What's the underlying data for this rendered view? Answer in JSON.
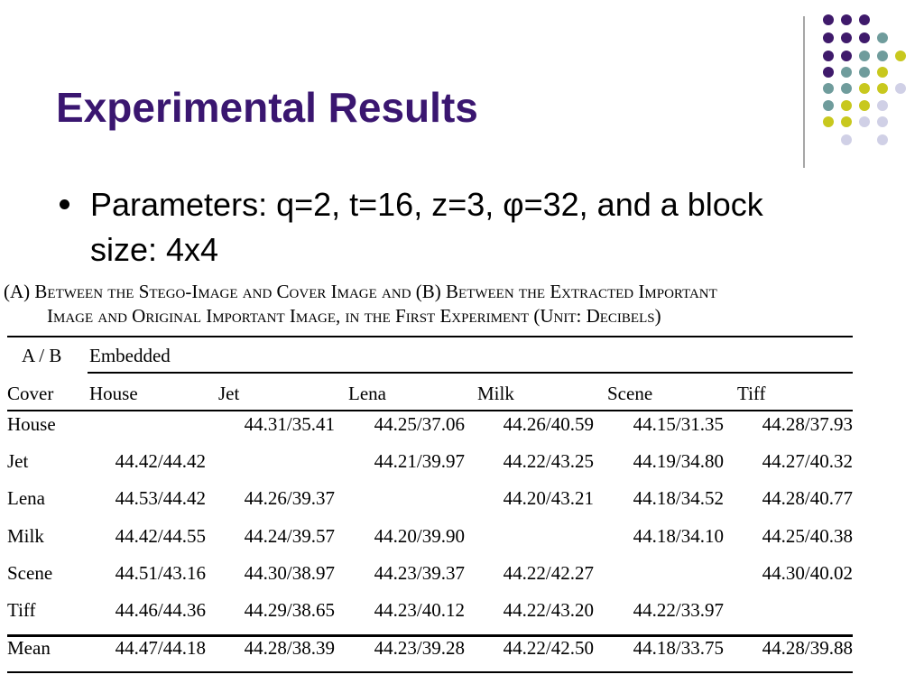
{
  "title": "Experimental Results",
  "bullets": [
    "Parameters: q=2, t=16, z=3, φ=32, and a block size: 4x4"
  ],
  "caption": [
    "(A) Between the Stego-Image and Cover Image and (B) Between the Extracted Important",
    "Image and Original Important Image, in the First Experiment (Unit: Decibels)"
  ],
  "table": {
    "corner": "A / B",
    "group": "Embedded",
    "row_header": "Cover",
    "columns": [
      "House",
      "Jet",
      "Lena",
      "Milk",
      "Scene",
      "Tiff"
    ],
    "rows": [
      [
        "House",
        null,
        "44.31/35.41",
        "44.25/37.06",
        "44.26/40.59",
        "44.15/31.35",
        "44.28/37.93"
      ],
      [
        "Jet",
        "44.42/44.42",
        null,
        "44.21/39.97",
        "44.22/43.25",
        "44.19/34.80",
        "44.27/40.32"
      ],
      [
        "Lena",
        "44.53/44.42",
        "44.26/39.37",
        null,
        "44.20/43.21",
        "44.18/34.52",
        "44.28/40.77"
      ],
      [
        "Milk",
        "44.42/44.55",
        "44.24/39.57",
        "44.20/39.90",
        null,
        "44.18/34.10",
        "44.25/40.38"
      ],
      [
        "Scene",
        "44.51/43.16",
        "44.30/38.97",
        "44.23/39.37",
        "44.22/42.27",
        null,
        "44.30/40.02"
      ],
      [
        "Tiff",
        "44.46/44.36",
        "44.29/38.65",
        "44.23/40.12",
        "44.22/43.20",
        "44.22/33.97",
        null
      ]
    ],
    "footer": [
      "Mean",
      "44.47/44.18",
      "44.28/38.39",
      "44.23/39.28",
      "44.22/42.50",
      "44.18/33.75",
      "44.28/39.88"
    ]
  }
}
